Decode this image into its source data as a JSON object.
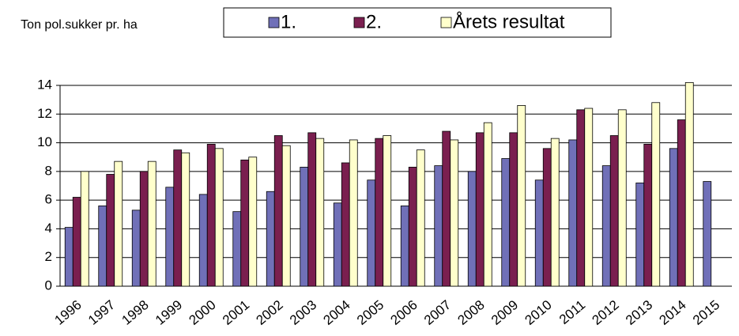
{
  "chart_data": {
    "type": "bar",
    "y_label": "Ton pol.sukker pr. ha",
    "categories": [
      "1996",
      "1997",
      "1998",
      "1999",
      "2000",
      "2001",
      "2002",
      "2003",
      "2004",
      "2005",
      "2006",
      "2007",
      "2008",
      "2009",
      "2010",
      "2011",
      "2012",
      "2013",
      "2014",
      "2015"
    ],
    "series": [
      {
        "name": "1.",
        "color": "#7070b8",
        "values": [
          4.1,
          5.6,
          5.3,
          6.9,
          6.4,
          5.2,
          6.6,
          8.3,
          5.8,
          7.4,
          5.6,
          8.4,
          8.0,
          8.9,
          7.4,
          10.2,
          8.4,
          7.2,
          9.6,
          7.3
        ]
      },
      {
        "name": "2.",
        "color": "#7a1f4f",
        "values": [
          6.2,
          7.8,
          8.0,
          9.5,
          9.9,
          8.8,
          10.5,
          10.7,
          8.6,
          10.3,
          8.3,
          10.8,
          10.7,
          10.7,
          9.6,
          12.3,
          10.5,
          9.9,
          11.6,
          null
        ]
      },
      {
        "name": "Årets resultat",
        "color": "#ffffcc",
        "values": [
          8.0,
          8.7,
          8.7,
          9.3,
          9.6,
          9.0,
          9.8,
          10.3,
          10.2,
          10.5,
          9.5,
          10.2,
          11.4,
          12.6,
          10.3,
          12.4,
          12.3,
          12.8,
          14.2,
          null
        ]
      }
    ],
    "ylim": [
      0,
      15
    ],
    "yticks": [
      0,
      2,
      4,
      6,
      8,
      10,
      12,
      14
    ],
    "grid": true
  }
}
